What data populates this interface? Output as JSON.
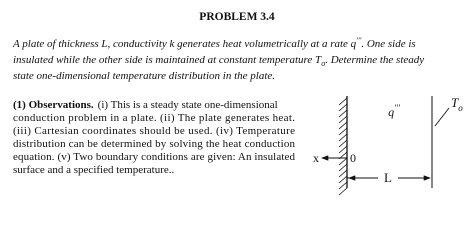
{
  "header": {
    "title": "PROBLEM 3.4"
  },
  "statement": {
    "line1": {
      "a": "A plate of thickness L, conductivity k generates heat volumetrically at a rate q",
      "sup": "'''",
      "b": ".    One side is"
    },
    "line2": {
      "a": "insulated while the other side is maintained at constant temperature T",
      "sub": "o",
      "b": ".  Determine the steady"
    },
    "line3": "state one-dimensional temperature distribution in the plate."
  },
  "observations": {
    "heading": "(1) Observations.",
    "lines": [
      "(i) This is a steady state one-dimensional",
      "conduction problem in a plate.  (ii) The plate generates heat.",
      "(iii) Cartesian coordinates should be used.  (iv) Temperature",
      "distribution can be determined by solving the heat conduction",
      "equation. (v) Two boundary conditions are given: An insulated",
      "surface and a specified temperature.."
    ]
  },
  "diagram": {
    "generation": {
      "base": "q",
      "sup": "'''"
    },
    "surface_temperature": {
      "base": "T",
      "sub": "o"
    },
    "axis_label": "x",
    "origin_label": "0",
    "thickness_label": "L"
  }
}
